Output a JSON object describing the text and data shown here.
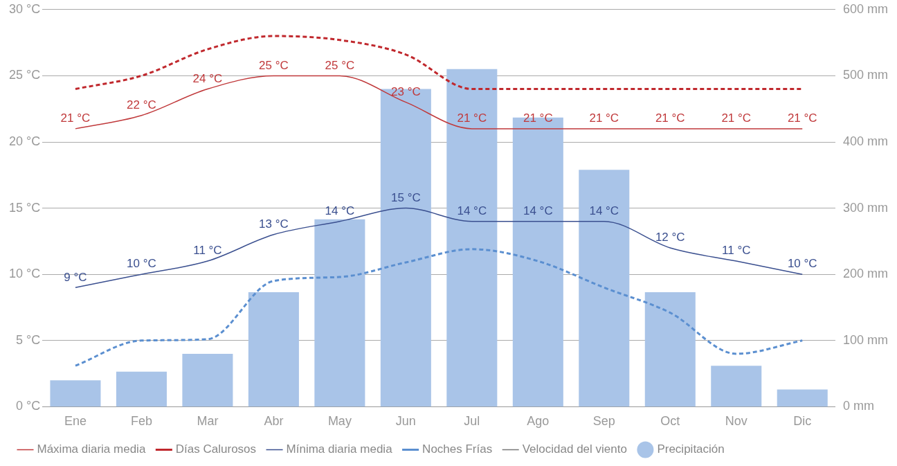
{
  "chart_data": {
    "type": "line",
    "categories": [
      "Ene",
      "Feb",
      "Mar",
      "Abr",
      "May",
      "Jun",
      "Jul",
      "Ago",
      "Sep",
      "Oct",
      "Nov",
      "Dic"
    ],
    "series": [
      {
        "name": "Precipitación",
        "type": "bar",
        "axis": "y2",
        "color": "#a9c4e8",
        "values": [
          40,
          53,
          80,
          173,
          283,
          480,
          510,
          437,
          358,
          173,
          62,
          26
        ]
      },
      {
        "name": "Máxima diaria media",
        "color": "#c0393b",
        "values": [
          21,
          22,
          24,
          25,
          25,
          23,
          21,
          21,
          21,
          21,
          21,
          21
        ],
        "value_labels": [
          "21 °C",
          "22 °C",
          "24 °C",
          "25 °C",
          "25 °C",
          "23 °C",
          "21 °C",
          "21 °C",
          "21 °C",
          "21 °C",
          "21 °C",
          "21 °C"
        ]
      },
      {
        "name": "Días Calurosos",
        "color": "#c0282d",
        "line_style": "dashed",
        "values": [
          24,
          25,
          27,
          28,
          27.7,
          26.6,
          24,
          24,
          24,
          24,
          24,
          24
        ]
      },
      {
        "name": "Mínima diaria media",
        "color": "#3a4f8f",
        "values": [
          9,
          10,
          11,
          13,
          14,
          15,
          14,
          14,
          14,
          12,
          11,
          10
        ],
        "value_labels": [
          "9 °C",
          "10 °C",
          "11 °C",
          "13 °C",
          "14 °C",
          "15 °C",
          "14 °C",
          "14 °C",
          "14 °C",
          "12 °C",
          "11 °C",
          "10 °C"
        ]
      },
      {
        "name": "Noches Frías",
        "color": "#5b8fd0",
        "line_style": "dashed",
        "values": [
          3.1,
          5,
          5.1,
          9.5,
          9.8,
          10.9,
          11.9,
          11,
          9,
          7.1,
          4,
          5
        ]
      },
      {
        "name": "Velocidad del viento",
        "color": "#777777",
        "values": [
          null,
          null,
          null,
          null,
          null,
          null,
          null,
          null,
          null,
          null,
          null,
          null
        ]
      }
    ],
    "ylim": [
      0,
      30
    ],
    "yticks": [
      {
        "value": 0,
        "label": "0 °C"
      },
      {
        "value": 5,
        "label": "5 °C"
      },
      {
        "value": 10,
        "label": "10 °C"
      },
      {
        "value": 15,
        "label": "15 °C"
      },
      {
        "value": 20,
        "label": "20 °C"
      },
      {
        "value": 25,
        "label": "25 °C"
      },
      {
        "value": 30,
        "label": "30 °C"
      }
    ],
    "y2lim": [
      0,
      600
    ],
    "y2ticks": [
      {
        "value": 0,
        "label": "0 mm"
      },
      {
        "value": 100,
        "label": "100 mm"
      },
      {
        "value": 200,
        "label": "200 mm"
      },
      {
        "value": 300,
        "label": "300 mm"
      },
      {
        "value": 400,
        "label": "400 mm"
      },
      {
        "value": 500,
        "label": "500 mm"
      },
      {
        "value": 600,
        "label": "600 mm"
      }
    ],
    "grid": "y",
    "legend": "bottom",
    "marker": "none"
  }
}
